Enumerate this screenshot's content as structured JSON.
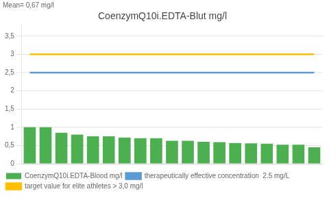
{
  "chart_data": {
    "type": "bar",
    "title": "CoenzymQ10i.EDTA-Blut mg/l",
    "annotations": [
      "Mean= 0,67 mg/l"
    ],
    "categories": [
      null,
      null,
      null,
      null,
      null,
      null,
      null,
      null,
      null,
      null,
      null,
      null,
      null,
      null,
      null,
      null,
      null,
      null,
      null
    ],
    "series": [
      {
        "name": "CoenzymQ10i.EDTA-Blood mg/l",
        "type": "bar",
        "color": "#4CAF50",
        "values": [
          1.0,
          1.0,
          0.85,
          0.8,
          0.75,
          0.75,
          0.72,
          0.7,
          0.7,
          0.63,
          0.63,
          0.6,
          0.59,
          0.57,
          0.56,
          0.55,
          0.52,
          0.52,
          0.45
        ]
      },
      {
        "name": "therapeutically effective concentration  2.5 mg/L",
        "type": "line",
        "color": "#5B9BD5",
        "values": [
          2.5,
          2.5,
          2.5,
          2.5,
          2.5,
          2.5,
          2.5,
          2.5,
          2.5,
          2.5,
          2.5,
          2.5,
          2.5,
          2.5,
          2.5,
          2.5,
          2.5,
          2.5,
          2.5
        ]
      },
      {
        "name": "target value for elite athletes > 3,0 mg/l",
        "type": "line",
        "color": "#FFC000",
        "values": [
          3.0,
          3.0,
          3.0,
          3.0,
          3.0,
          3.0,
          3.0,
          3.0,
          3.0,
          3.0,
          3.0,
          3.0,
          3.0,
          3.0,
          3.0,
          3.0,
          3.0,
          3.0,
          3.0
        ]
      }
    ],
    "ylim": [
      0,
      3.8
    ],
    "yticks": [
      0,
      {
        "value": 0.5,
        "label": "0,5"
      },
      1,
      {
        "value": 1.5,
        "label": "1,5"
      },
      2,
      {
        "value": 2.5,
        "label": "2,5"
      },
      3,
      {
        "value": 3.5,
        "label": "3,5"
      }
    ],
    "grid": true,
    "legend": "bottom",
    "tick_labels": "y"
  }
}
